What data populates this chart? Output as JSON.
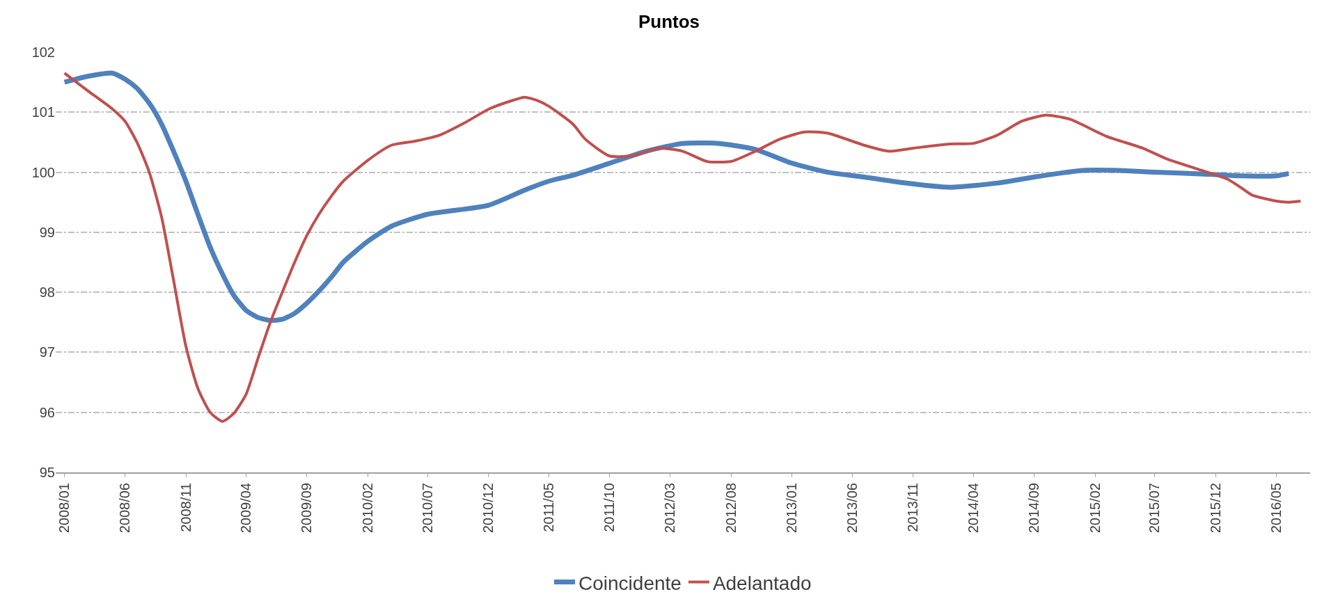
{
  "chart_data": {
    "type": "line",
    "title": "Puntos",
    "xlim": [
      "2007-12-10",
      "2016-07-25"
    ],
    "xticks": [
      {
        "value": "2008-01",
        "label": "2008/01"
      },
      {
        "value": "2008-06",
        "label": "2008/06"
      },
      {
        "value": "2008-11",
        "label": "2008/11"
      },
      {
        "value": "2009-04",
        "label": "2009/04"
      },
      {
        "value": "2009-09",
        "label": "2009/09"
      },
      {
        "value": "2010-02",
        "label": "2010/02"
      },
      {
        "value": "2010-07",
        "label": "2010/07"
      },
      {
        "value": "2010-12",
        "label": "2010/12"
      },
      {
        "value": "2011-05",
        "label": "2011/05"
      },
      {
        "value": "2011-10",
        "label": "2011/10"
      },
      {
        "value": "2012-03",
        "label": "2012/03"
      },
      {
        "value": "2012-08",
        "label": "2012/08"
      },
      {
        "value": "2013-01",
        "label": "2013/01"
      },
      {
        "value": "2013-06",
        "label": "2013/06"
      },
      {
        "value": "2013-11",
        "label": "2013/11"
      },
      {
        "value": "2014-04",
        "label": "2014/04"
      },
      {
        "value": "2014-09",
        "label": "2014/09"
      },
      {
        "value": "2015-02",
        "label": "2015/02"
      },
      {
        "value": "2015-07",
        "label": "2015/07"
      },
      {
        "value": "2015-12",
        "label": "2015/12"
      },
      {
        "value": "2016-05",
        "label": "2016/05"
      }
    ],
    "ylim": [
      95,
      102
    ],
    "yticks": [
      95,
      96,
      97,
      98,
      99,
      100,
      101,
      102
    ],
    "grid": "y",
    "legend": "bottom",
    "marker": "none",
    "line_style": "solid",
    "series": [
      {
        "name": "Coincidente",
        "color": "#4f81bd",
        "x": [
          "2008-01",
          "2008-03",
          "2008-05",
          "2008-06",
          "2008-07",
          "2008-08",
          "2008-09",
          "2008-10",
          "2008-11",
          "2008-12",
          "2009-01",
          "2009-02",
          "2009-03",
          "2009-04",
          "2009-05",
          "2009-06",
          "2009-07",
          "2009-08",
          "2009-09",
          "2009-10",
          "2009-11",
          "2009-12",
          "2010-02",
          "2010-04",
          "2010-07",
          "2010-12",
          "2011-03",
          "2011-05",
          "2011-07",
          "2011-10",
          "2012-01",
          "2012-04",
          "2012-07",
          "2012-10",
          "2013-01",
          "2013-04",
          "2013-07",
          "2013-10",
          "2014-02",
          "2014-06",
          "2014-09",
          "2015-01",
          "2015-04",
          "2015-07",
          "2015-11",
          "2016-02",
          "2016-05",
          "2016-06"
        ],
        "values": [
          101.5,
          101.6,
          101.65,
          101.55,
          101.4,
          101.15,
          100.8,
          100.35,
          99.85,
          99.3,
          98.75,
          98.3,
          97.95,
          97.7,
          97.58,
          97.53,
          97.55,
          97.65,
          97.82,
          98.02,
          98.25,
          98.5,
          98.85,
          99.1,
          99.3,
          99.45,
          99.7,
          99.85,
          99.95,
          100.15,
          100.35,
          100.48,
          100.48,
          100.38,
          100.15,
          100.0,
          99.92,
          99.83,
          99.75,
          99.82,
          99.92,
          100.03,
          100.03,
          100.0,
          99.97,
          99.94,
          99.94,
          99.98
        ]
      },
      {
        "name": "Adelantado",
        "color": "#c0504d",
        "x": [
          "2008-01",
          "2008-03",
          "2008-05",
          "2008-06",
          "2008-07",
          "2008-08",
          "2008-09",
          "2008-10",
          "2008-11",
          "2008-12",
          "2009-01",
          "2009-02",
          "2009-03",
          "2009-04",
          "2009-05",
          "2009-06",
          "2009-07",
          "2009-08",
          "2009-09",
          "2009-10",
          "2009-11",
          "2009-12",
          "2010-02",
          "2010-04",
          "2010-06",
          "2010-08",
          "2010-10",
          "2010-12",
          "2011-02",
          "2011-03",
          "2011-04",
          "2011-05",
          "2011-07",
          "2011-08",
          "2011-10",
          "2011-12",
          "2012-02",
          "2012-04",
          "2012-06",
          "2012-08",
          "2012-10",
          "2012-12",
          "2013-02",
          "2013-04",
          "2013-07",
          "2013-09",
          "2013-11",
          "2014-02",
          "2014-04",
          "2014-06",
          "2014-08",
          "2014-10",
          "2014-12",
          "2015-03",
          "2015-06",
          "2015-08",
          "2015-11",
          "2016-01",
          "2016-02",
          "2016-03",
          "2016-05",
          "2016-06",
          "2016-07"
        ],
        "values": [
          101.65,
          101.35,
          101.05,
          100.85,
          100.5,
          100.0,
          99.25,
          98.2,
          97.1,
          96.4,
          96.0,
          95.85,
          95.98,
          96.3,
          96.9,
          97.5,
          98.0,
          98.5,
          98.95,
          99.3,
          99.6,
          99.85,
          100.2,
          100.45,
          100.52,
          100.62,
          100.82,
          101.05,
          101.2,
          101.25,
          101.2,
          101.1,
          100.8,
          100.55,
          100.27,
          100.28,
          100.4,
          100.35,
          100.18,
          100.18,
          100.35,
          100.55,
          100.67,
          100.65,
          100.45,
          100.35,
          100.4,
          100.47,
          100.48,
          100.62,
          100.85,
          100.95,
          100.88,
          100.6,
          100.4,
          100.22,
          100.02,
          99.88,
          99.75,
          99.62,
          99.52,
          99.5,
          99.52
        ]
      }
    ]
  }
}
